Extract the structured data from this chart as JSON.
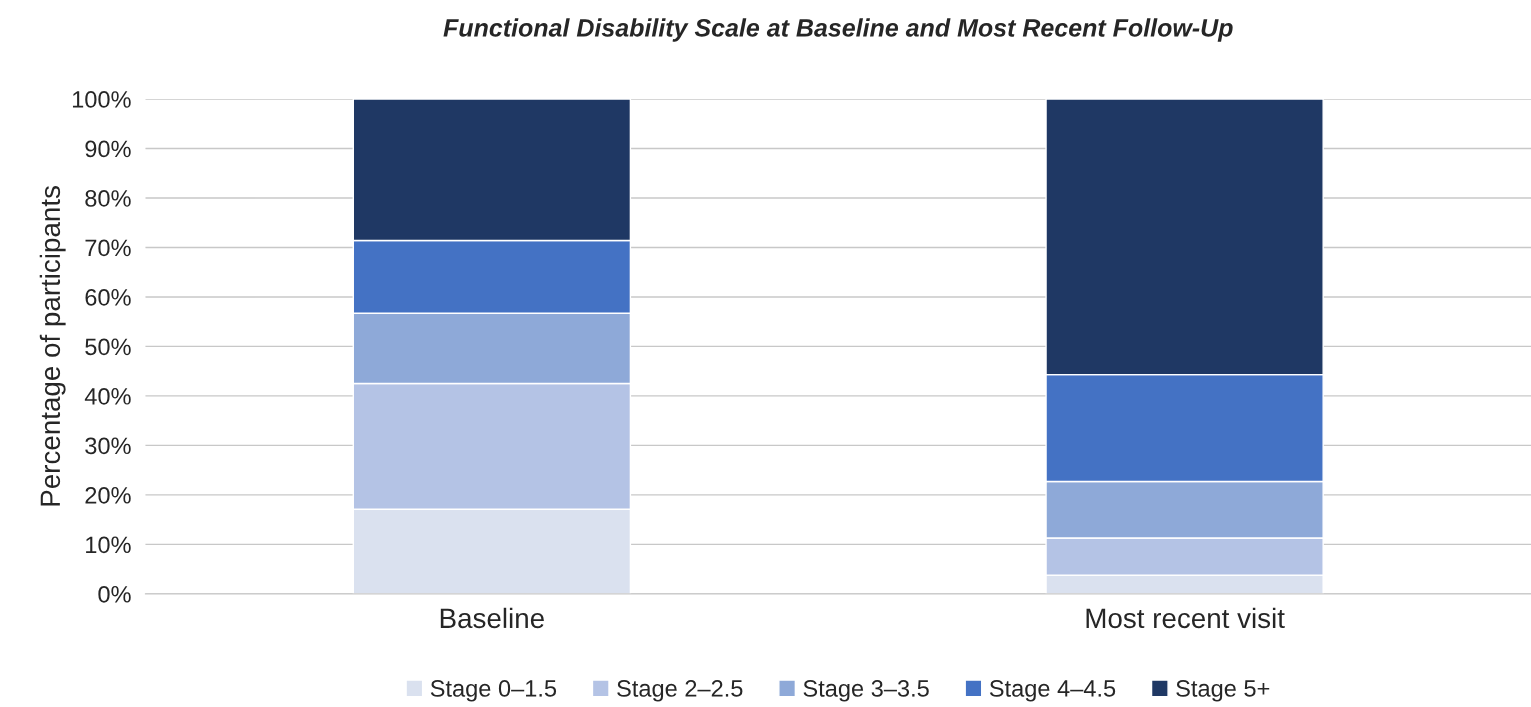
{
  "chart_data": {
    "type": "bar",
    "title": "Functional Disability Scale at Baseline and Most Recent Follow-Up",
    "ylabel": "Percentage of participants",
    "categories": [
      "Baseline",
      "Most recent visit"
    ],
    "stacked": true,
    "series": [
      {
        "name": "Stage 0–1.5",
        "color": "#dae1ef",
        "values": [
          17.1,
          3.8
        ]
      },
      {
        "name": "Stage 2–2.5",
        "color": "#b4c3e5",
        "values": [
          25.4,
          7.5
        ]
      },
      {
        "name": "Stage 3–3.5",
        "color": "#8ea9d8",
        "values": [
          14.2,
          11.4
        ]
      },
      {
        "name": "Stage 4–4.5",
        "color": "#4472c4",
        "values": [
          14.7,
          21.6
        ]
      },
      {
        "name": "Stage 5+",
        "color": "#1f3864",
        "values": [
          28.6,
          55.7
        ]
      }
    ],
    "ylim": [
      0,
      100
    ],
    "yticks": [
      {
        "value": 0,
        "label": "0%"
      },
      {
        "value": 10,
        "label": "10%"
      },
      {
        "value": 20,
        "label": "20%"
      },
      {
        "value": 30,
        "label": "30%"
      },
      {
        "value": 40,
        "label": "40%"
      },
      {
        "value": 50,
        "label": "50%"
      },
      {
        "value": 60,
        "label": "60%"
      },
      {
        "value": 70,
        "label": "70%"
      },
      {
        "value": 80,
        "label": "80%"
      },
      {
        "value": 90,
        "label": "90%"
      },
      {
        "value": 100,
        "label": "100%"
      }
    ],
    "grid": "y",
    "legend": "bottom"
  }
}
